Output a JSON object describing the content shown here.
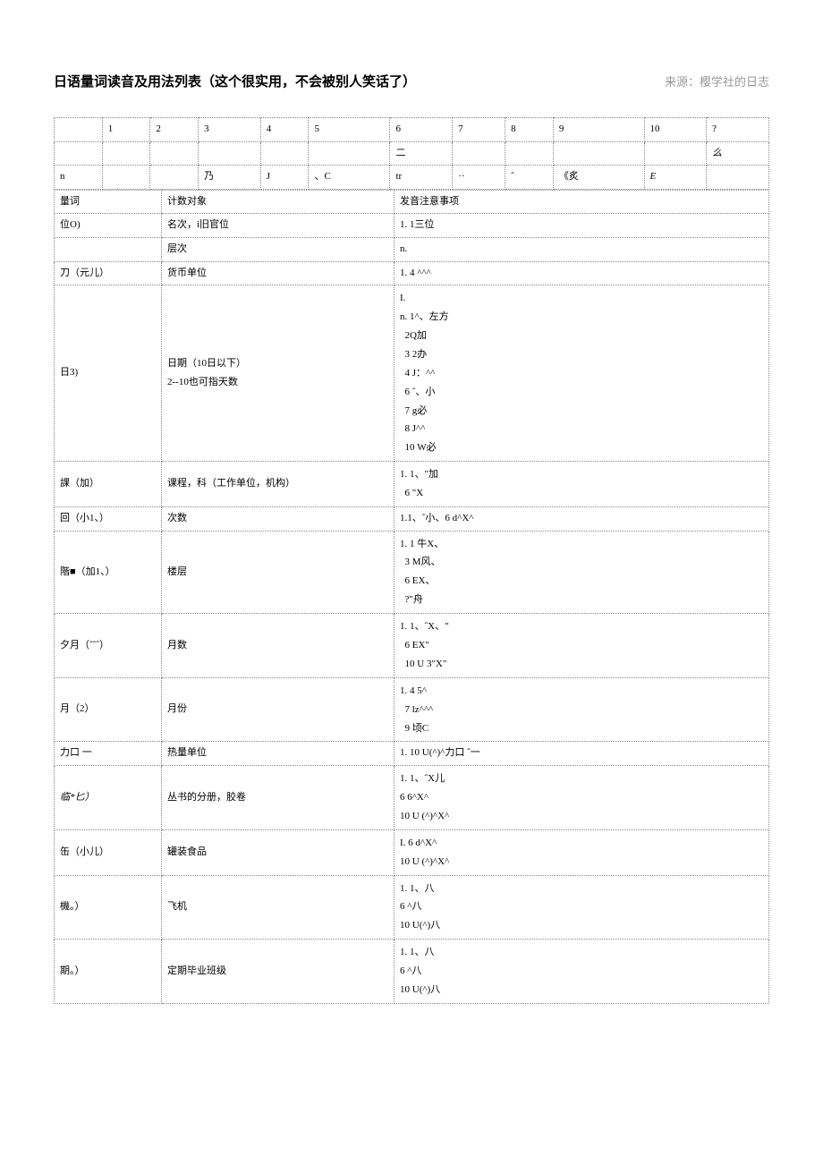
{
  "header": {
    "title": "日语量词读音及用法列表（这个很实用，不会被别人笑话了）",
    "source": "来源：樱学社的日志"
  },
  "numTable": {
    "row1": [
      "",
      "1",
      "2",
      "3",
      "4",
      "5",
      "6",
      "7",
      "8",
      "9",
      "10",
      "?"
    ],
    "row2": [
      "",
      "",
      "",
      "",
      "",
      "",
      "二",
      "",
      "",
      "",
      "",
      "么"
    ],
    "row3": [
      "n",
      "",
      "",
      "乃",
      "J",
      "、C",
      "tr",
      "··",
      "ˆ",
      "《炙",
      "E",
      ""
    ]
  },
  "mainTable": {
    "headers": [
      "量词",
      "计数对象",
      "发音注意事项"
    ],
    "rows": [
      {
        "counter": "位O)",
        "target": "名次，i旧官位",
        "note": "1. 1三位"
      },
      {
        "counter": "",
        "target": "层次",
        "note": "n."
      },
      {
        "counter": "刀（元儿）",
        "target": "货币单位",
        "note": "1. 4 ^^^"
      },
      {
        "counter": "日3)",
        "target": "日期（10日以下）\n2--10也可指天数",
        "note": "I.\nn. 1^、左方\n  2Q加\n  3 2办\n  4 J：^^\n  6 ˆ、小\n  7 g必\n  8 J^^\n  10 W必"
      },
      {
        "counter": "課（加）",
        "target": "课程，科（工作单位，机构）",
        "note": "1. 1、\"加\n  6 \"X"
      },
      {
        "counter": "回（小1、）",
        "target": "次数",
        "note": "1.1、ˆ小、6 d^X^"
      },
      {
        "counter": "階■（加1、）",
        "target": "楼层",
        "note": "1. 1 牛X、\n  3 M风、\n  6 EX、\n  ?\"舟"
      },
      {
        "counter": "夕月（ˆˆˆ）",
        "target": "月数",
        "note": "1. 1、ˆX、\"\n  6 EX\"\n  10 U 3\"X\""
      },
      {
        "counter": "月（2）",
        "target": "月份",
        "note": "1. 4 5^\n  7 lz^^^\n  9 顷C"
      },
      {
        "counter": "力口 一",
        "target": "热量单位",
        "note": "1. 10 U(^)^力口 ˆ一"
      },
      {
        "counter": "临*匕）",
        "target": "丛书的分册，胶卷",
        "note": "1. 1、ˆX儿\n6 6^X^\n10 U (^)^X^"
      },
      {
        "counter": "缶（小儿）",
        "target": "罐装食品",
        "note": "I. 6 d^X^\n10 U (^)^X^"
      },
      {
        "counter": "機。）",
        "target": "飞机",
        "note": "1. 1、八\n6 ^八\n10 U(^)八"
      },
      {
        "counter": "期。）",
        "target": "定期毕业班级",
        "note": "1. 1、八\n6 ^八\n10 U(^)八"
      }
    ]
  }
}
